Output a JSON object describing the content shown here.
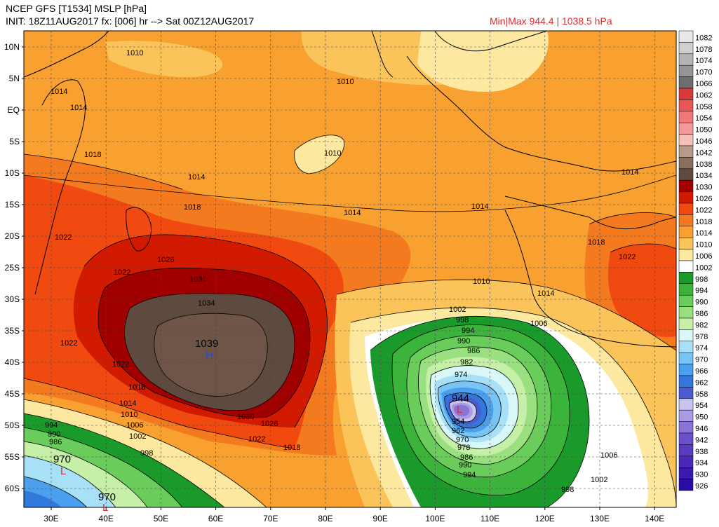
{
  "header": {
    "line1": "NCEP GFS [T1534] MSLP [hPa]",
    "line2": "INIT: 18Z11AUG2017 fx: [006] hr --> Sat 00Z12AUG2017",
    "minmax": "Min|Max 944.4 | 1038.5 hPa"
  },
  "lat_labels": [
    "10N",
    "5N",
    "EQ",
    "5S",
    "10S",
    "15S",
    "20S",
    "25S",
    "30S",
    "35S",
    "40S",
    "45S",
    "50S",
    "55S",
    "60S"
  ],
  "lon_labels": [
    "30E",
    "40E",
    "50E",
    "60E",
    "70E",
    "80E",
    "90E",
    "100E",
    "110E",
    "120E",
    "130E",
    "140E"
  ],
  "colorbar": {
    "levels": [
      "1082",
      "1078",
      "1074",
      "1070",
      "1066",
      "1062",
      "1058",
      "1054",
      "1050",
      "1046",
      "1042",
      "1038",
      "1034",
      "1030",
      "1026",
      "1022",
      "1018",
      "1014",
      "1010",
      "1006",
      "1002",
      "998",
      "994",
      "990",
      "986",
      "982",
      "978",
      "974",
      "970",
      "966",
      "962",
      "958",
      "954",
      "950",
      "946",
      "942",
      "938",
      "934",
      "930",
      "926"
    ],
    "colors": [
      "#e8e8e8",
      "#d0d0d0",
      "#b4b4b4",
      "#969696",
      "#6e6e6e",
      "#d83a3a",
      "#e85858",
      "#f07878",
      "#f49a9a",
      "#f4c0b8",
      "#b89a8a",
      "#8a6e5e",
      "#5e4a3e",
      "#a00000",
      "#d21a00",
      "#f04a10",
      "#f47a20",
      "#f8a030",
      "#fbc45a",
      "#fde8a0",
      "#ffffff",
      "#1a9a2a",
      "#3cb43c",
      "#6acc5a",
      "#9ae080",
      "#c6f0a8",
      "#d8f8f8",
      "#a8e0f8",
      "#78c4f4",
      "#4aa0ec",
      "#3278dc",
      "#4a5cd0",
      "#c8c4f0",
      "#aa9ce4",
      "#8a74d8",
      "#6a50cc",
      "#5a3cc2",
      "#4a28b8",
      "#3a1aae",
      "#2a0ca4"
    ]
  },
  "contour_labels": [
    "1010",
    "1010",
    "1010",
    "1014",
    "1014",
    "1018",
    "1014",
    "1014",
    "1014",
    "1014",
    "1018",
    "1022",
    "1026",
    "1022",
    "1030",
    "1034",
    "1022",
    "1022",
    "1018",
    "1014",
    "1010",
    "1006",
    "1002",
    "998",
    "994",
    "990",
    "986",
    "1030",
    "1026",
    "1022",
    "1018",
    "1010",
    "1014",
    "1018",
    "1022",
    "1002",
    "998",
    "994",
    "990",
    "986",
    "982",
    "974",
    "954",
    "962",
    "970",
    "978",
    "986",
    "990",
    "994",
    "1006",
    "1006",
    "1002",
    "998"
  ],
  "centers": {
    "high": {
      "value": "1039",
      "symbol": "H"
    },
    "low_main": {
      "value": "944",
      "symbol": "L"
    },
    "low_sw": {
      "value": "970",
      "symbol": "L"
    },
    "low_s": {
      "value": "970",
      "symbol": "L"
    }
  }
}
